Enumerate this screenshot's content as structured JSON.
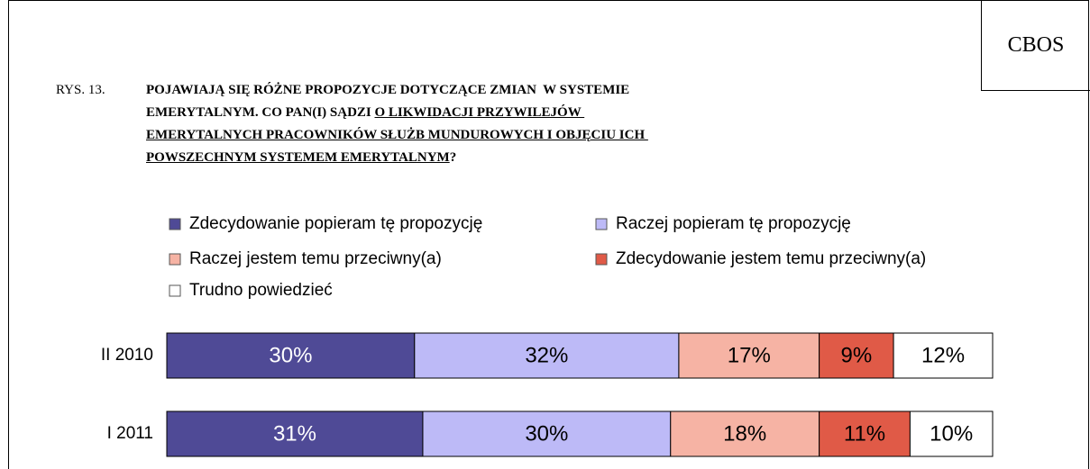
{
  "brand": "CBOS",
  "chart_data": {
    "type": "stacked-bar",
    "label": "RYS. 13.",
    "title_lines": [
      [
        {
          "text": "POJAWIAJĄ SIĘ RÓŻNE PROPOZYCJE DOTYCZĄCE ZMIAN  W SYSTEMIE",
          "underline": false
        }
      ],
      [
        {
          "text": "EMERYTALNYM. CO PAN(I) SĄDZI ",
          "underline": false
        },
        {
          "text": "O LIKWIDACJI PRZYWILEJÓW ",
          "underline": true
        }
      ],
      [
        {
          "text": "EMERYTALNYCH PRACOWNIKÓW SŁUŻB MUNDUROWYCH I OBJĘCIU ICH ",
          "underline": true
        }
      ],
      [
        {
          "text": "POWSZECHNYM SYSTEMEM EMERYTALNYM",
          "underline": true
        },
        {
          "text": "?",
          "underline": false
        }
      ]
    ],
    "categories": [
      "II 2010",
      "I 2011"
    ],
    "xlim": [
      0,
      100
    ],
    "series": [
      {
        "name": "Zdecydowanie popieram tę propozycję",
        "color": "#4f4a96",
        "label_color": "#ffffff",
        "values": [
          30,
          31
        ],
        "value_labels": [
          "30%",
          "31%"
        ]
      },
      {
        "name": "Raczej popieram tę propozycję",
        "color": "#bdbaf7",
        "label_color": "#000000",
        "values": [
          32,
          30
        ],
        "value_labels": [
          "32%",
          "30%"
        ]
      },
      {
        "name": "Raczej jestem temu przeciwny(a)",
        "color": "#f6b3a4",
        "label_color": "#000000",
        "values": [
          17,
          18
        ],
        "value_labels": [
          "17%",
          "18%"
        ]
      },
      {
        "name": "Zdecydowanie jestem temu przeciwny(a)",
        "color": "#e05a47",
        "label_color": "#000000",
        "values": [
          9,
          11
        ],
        "value_labels": [
          "9%",
          "11%"
        ]
      },
      {
        "name": "Trudno powiedzieć",
        "color": "#ffffff",
        "label_color": "#000000",
        "values": [
          12,
          10
        ],
        "value_labels": [
          "12%",
          "10%"
        ]
      }
    ]
  }
}
